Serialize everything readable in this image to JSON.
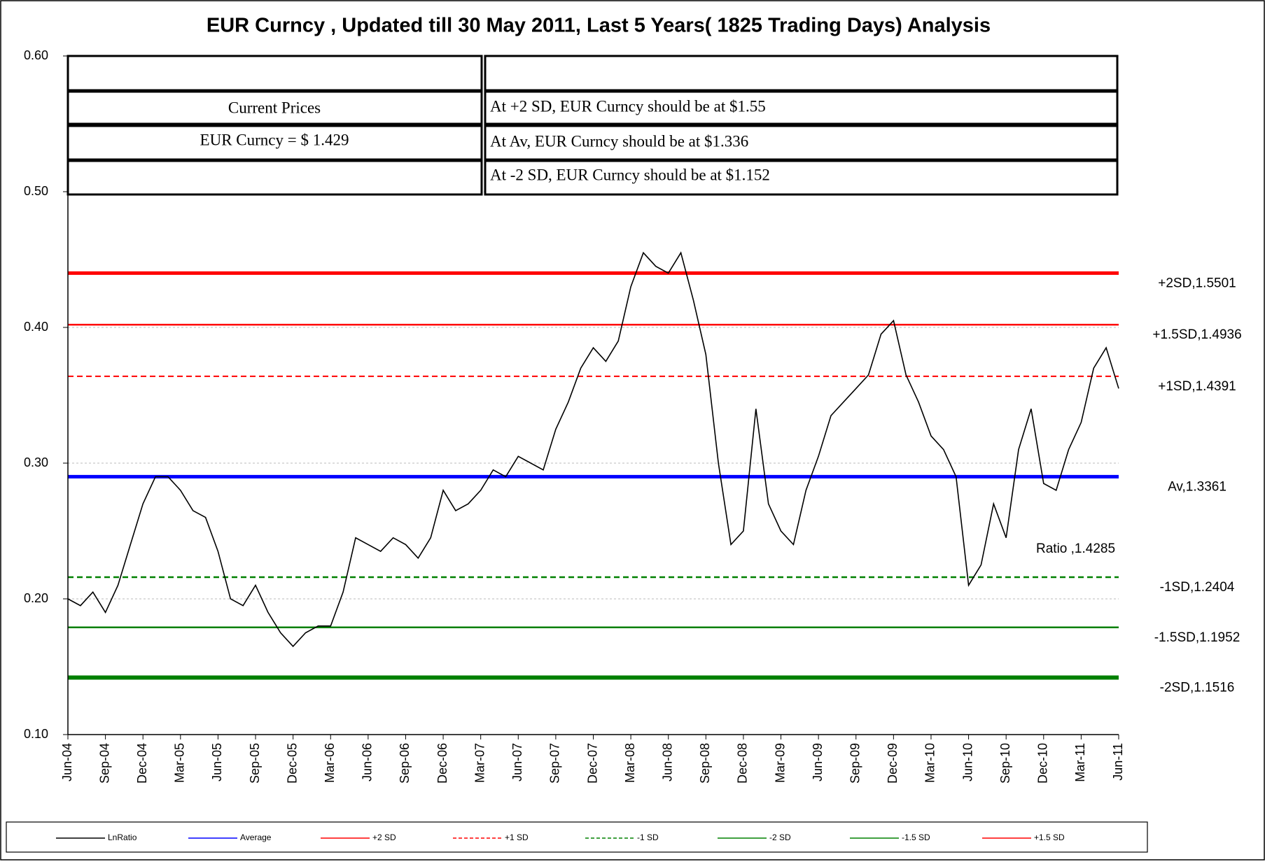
{
  "chart_data": {
    "type": "line",
    "title": "EUR Curncy , Updated till 30 May 2011, Last 5 Years( 1825 Trading Days) Analysis",
    "categories": [
      "Jun-04",
      null,
      null,
      "Sep-04",
      null,
      null,
      "Dec-04",
      null,
      null,
      "Mar-05",
      null,
      null,
      "Jun-05",
      null,
      null,
      "Sep-05",
      null,
      null,
      "Dec-05",
      null,
      null,
      "Mar-06",
      null,
      null,
      "Jun-06",
      null,
      null,
      "Sep-06",
      null,
      null,
      "Dec-06",
      null,
      null,
      "Mar-07",
      null,
      null,
      "Jun-07",
      null,
      null,
      "Sep-07",
      null,
      null,
      "Dec-07",
      null,
      null,
      "Mar-08",
      null,
      null,
      "Jun-08",
      null,
      null,
      "Sep-08",
      null,
      null,
      "Dec-08",
      null,
      null,
      "Mar-09",
      null,
      null,
      "Jun-09",
      null,
      null,
      "Sep-09",
      null,
      null,
      "Dec-09",
      null,
      null,
      "Mar-10",
      null,
      null,
      "Jun-10",
      null,
      null,
      "Sep-10",
      null,
      null,
      "Dec-10",
      null,
      null,
      "Mar-11",
      null,
      null,
      "Jun-11"
    ],
    "series": [
      {
        "name": "LnRatio",
        "color": "#000000",
        "values": [
          0.2,
          0.195,
          0.205,
          0.19,
          0.21,
          0.24,
          0.27,
          0.29,
          0.29,
          0.28,
          0.265,
          0.26,
          0.235,
          0.2,
          0.195,
          0.21,
          0.19,
          0.175,
          0.165,
          0.175,
          0.18,
          0.18,
          0.205,
          0.245,
          0.24,
          0.235,
          0.245,
          0.24,
          0.23,
          0.245,
          0.28,
          0.265,
          0.27,
          0.28,
          0.295,
          0.29,
          0.305,
          0.3,
          0.295,
          0.325,
          0.345,
          0.37,
          0.385,
          0.375,
          0.39,
          0.43,
          0.455,
          0.445,
          0.44,
          0.455,
          0.42,
          0.38,
          0.3,
          0.24,
          0.25,
          0.34,
          0.27,
          0.25,
          0.24,
          0.28,
          0.305,
          0.335,
          0.345,
          0.355,
          0.365,
          0.395,
          0.405,
          0.365,
          0.345,
          0.32,
          0.31,
          0.29,
          0.21,
          0.225,
          0.27,
          0.245,
          0.31,
          0.34,
          0.285,
          0.28,
          0.31,
          0.33,
          0.37,
          0.385,
          0.355
        ]
      }
    ],
    "reference_lines": [
      {
        "name": "Average",
        "color": "#0000ff",
        "value": 0.29,
        "width": 5,
        "dash": false,
        "label": "Av,1.3361"
      },
      {
        "name": "+2 SD",
        "color": "#ff0000",
        "value": 0.44,
        "width": 5,
        "dash": false,
        "label": "+2SD,1.5501"
      },
      {
        "name": "+1 SD",
        "color": "#ff0000",
        "value": 0.364,
        "width": 2,
        "dash": true,
        "label": "+1SD,1.4391"
      },
      {
        "name": "-1 SD",
        "color": "#008000",
        "value": 0.216,
        "width": 2.5,
        "dash": true,
        "label": "-1SD,1.2404"
      },
      {
        "name": "-2 SD",
        "color": "#008000",
        "value": 0.142,
        "width": 6,
        "dash": false,
        "label": "-2SD,1.1516"
      },
      {
        "name": "-1.5 SD",
        "color": "#008000",
        "value": 0.179,
        "width": 2.5,
        "dash": false,
        "label": "-1.5SD,1.1952"
      },
      {
        "name": "+1.5 SD",
        "color": "#ff0000",
        "value": 0.402,
        "width": 2.5,
        "dash": false,
        "label": "+1.5SD,1.4936"
      }
    ],
    "annotation": "Ratio ,1.4285",
    "ylim": [
      0.1,
      0.6
    ],
    "yticks": [
      {
        "value": 0.1,
        "label": "0.10"
      },
      {
        "value": 0.2,
        "label": "0.20"
      },
      {
        "value": 0.3,
        "label": "0.30"
      },
      {
        "value": 0.4,
        "label": "0.40"
      },
      {
        "value": 0.5,
        "label": "0.50"
      },
      {
        "value": 0.6,
        "label": "0.60"
      }
    ],
    "grid": true,
    "table": {
      "left": [
        "Current Prices",
        "EUR Curncy =  $ 1.429"
      ],
      "right": [
        "At +2 SD, EUR Curncy should be at $1.55",
        "At Av, EUR Curncy should be at $1.336",
        "At -2 SD, EUR Curncy should be at $1.152"
      ]
    }
  }
}
